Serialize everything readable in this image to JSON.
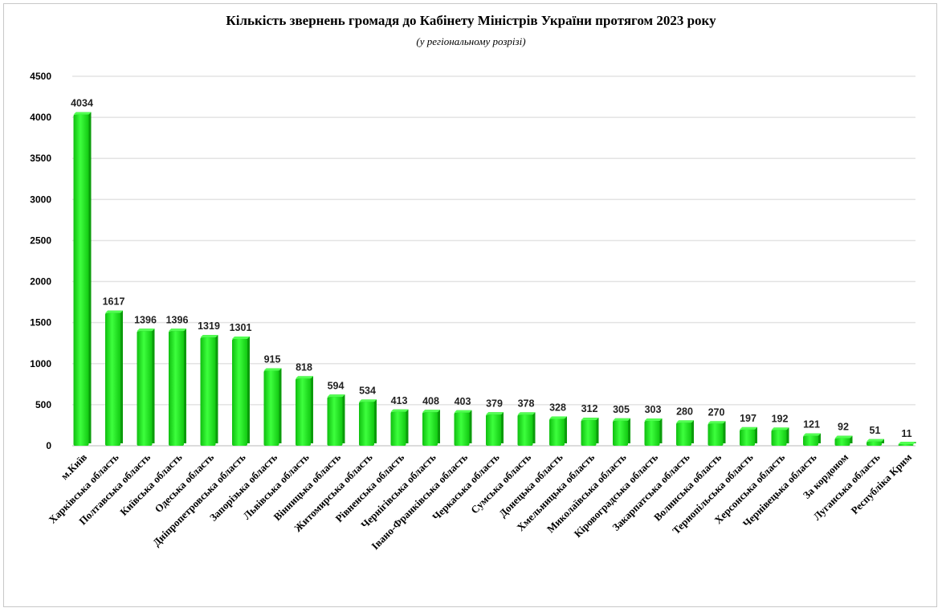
{
  "chart_data": {
    "type": "bar",
    "title": "Кількість звернень громадя до Кабінету Міністрів України протягом 2023 року",
    "subtitle": "(у регіональному розрізі)",
    "categories": [
      "м.Київ",
      "Харківська область",
      "Полтавська область",
      "Київська область",
      "Одеська область",
      "Дніпропетровська область",
      "Запорізька область",
      "Львівська область",
      "Вінницька область",
      "Житомирська область",
      "Рівненська область",
      "Чернігівська область",
      "Івано-Франківська область",
      "Черкаська область",
      "Сумська область",
      "Донецька область",
      "Хмельницька область",
      "Миколаївська область",
      "Кіровоградська область",
      "Закарпатська область",
      "Волинська область",
      "Тернопільська область",
      "Херсонська область",
      "Чернівецька область",
      "За кордоном",
      "Луганська область",
      "Республіка Крим"
    ],
    "values": [
      4034,
      1617,
      1396,
      1396,
      1319,
      1301,
      915,
      818,
      594,
      534,
      413,
      408,
      403,
      379,
      378,
      328,
      312,
      305,
      303,
      280,
      270,
      197,
      192,
      121,
      92,
      51,
      11
    ],
    "yticks": [
      "0",
      "500",
      "1000",
      "1500",
      "2000",
      "2500",
      "3000",
      "3500",
      "4000",
      "4500"
    ],
    "ylim": [
      0,
      4500
    ],
    "grid": true,
    "bar_color": "#1ee61e"
  }
}
